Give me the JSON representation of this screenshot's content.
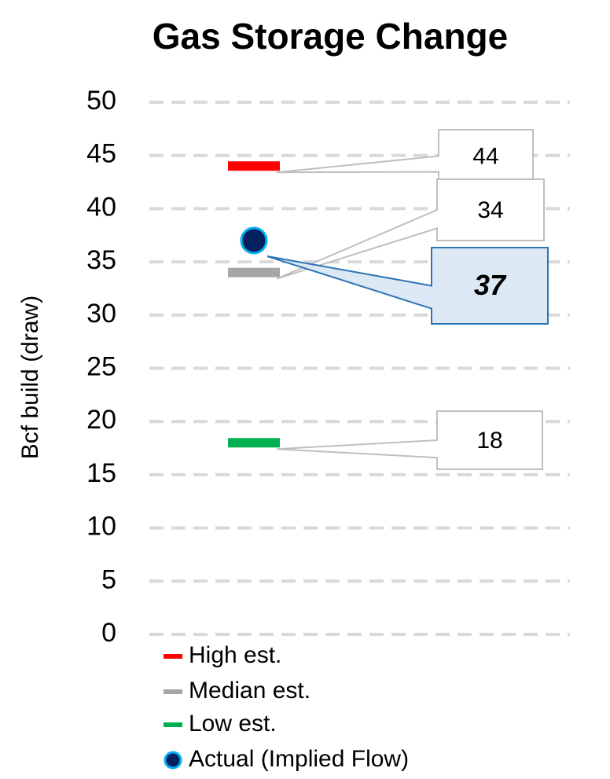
{
  "chart_data": {
    "type": "scatter",
    "title": "Gas Storage Change",
    "y_label": "Bcf build (draw)",
    "ylim": [
      0,
      50
    ],
    "yticks": [
      0,
      5,
      10,
      15,
      20,
      25,
      30,
      35,
      40,
      45,
      50
    ],
    "grid": true,
    "series": [
      {
        "name": "High est.",
        "color": "#ff0000",
        "marker": "dash",
        "values": [
          44
        ]
      },
      {
        "name": "Median est.",
        "color": "#a6a6a6",
        "marker": "dash",
        "values": [
          34
        ]
      },
      {
        "name": "Low est.",
        "color": "#00b050",
        "marker": "dash",
        "values": [
          18
        ]
      },
      {
        "name": "Actual (Implied Flow)",
        "color": "#002060",
        "marker": "circle",
        "values": [
          37
        ]
      }
    ]
  }
}
